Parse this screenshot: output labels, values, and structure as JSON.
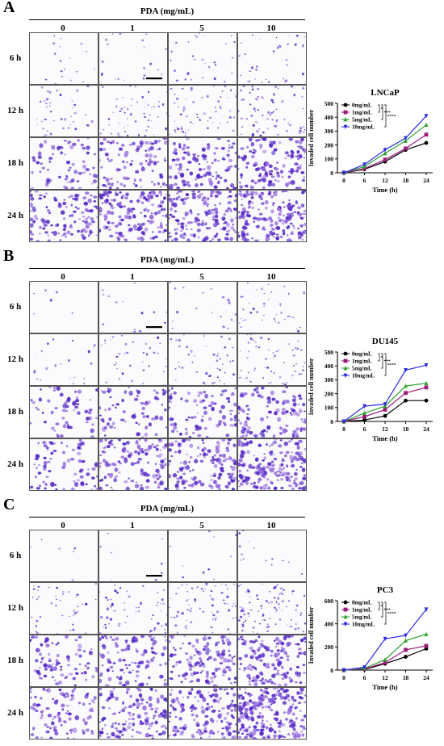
{
  "figure": {
    "pda_header": "PDA (mg/mL)",
    "concentrations": [
      "0",
      "1",
      "5",
      "10"
    ],
    "times": [
      "6 h",
      "12 h",
      "18 h",
      "24 h"
    ],
    "cell_color": "#5b2fc8",
    "panels": [
      {
        "letter": "A",
        "cell_line": "LNCaP"
      },
      {
        "letter": "B",
        "cell_line": "DU145"
      },
      {
        "letter": "C",
        "cell_line": "PC3"
      }
    ]
  },
  "chart_data": [
    {
      "type": "line",
      "title": "LNCaP",
      "xlabel": "Time (h)",
      "ylabel": "Invaded cell number",
      "x": [
        0,
        6,
        12,
        18,
        24
      ],
      "ylim": [
        0,
        500
      ],
      "yticks": [
        0,
        100,
        200,
        300,
        400,
        500
      ],
      "series": [
        {
          "name": "0mg/mL",
          "color": "#000000",
          "marker": "circle",
          "values": [
            0,
            25,
            80,
            165,
            215
          ]
        },
        {
          "name": "1mg/mL",
          "color": "#9b1b7a",
          "marker": "square",
          "values": [
            0,
            30,
            95,
            175,
            275
          ]
        },
        {
          "name": "5mg/mL",
          "color": "#2ea02e",
          "marker": "triangle-up",
          "values": [
            0,
            45,
            140,
            230,
            345
          ]
        },
        {
          "name": "10mg/mL",
          "color": "#2a2ae6",
          "marker": "triangle-down",
          "values": [
            0,
            60,
            165,
            250,
            410
          ]
        }
      ],
      "sig_marks": [
        "*",
        "***",
        "****"
      ],
      "legend": "top-left"
    },
    {
      "type": "line",
      "title": "DU145",
      "xlabel": "Time (h)",
      "ylabel": "Invaded cell number",
      "x": [
        0,
        6,
        12,
        18,
        24
      ],
      "ylim": [
        0,
        500
      ],
      "yticks": [
        0,
        100,
        200,
        300,
        400,
        500
      ],
      "series": [
        {
          "name": "0mg/mL",
          "color": "#000000",
          "marker": "circle",
          "values": [
            0,
            10,
            40,
            150,
            150
          ]
        },
        {
          "name": "1mg/mL",
          "color": "#9b1b7a",
          "marker": "square",
          "values": [
            0,
            35,
            85,
            205,
            245
          ]
        },
        {
          "name": "5mg/mL",
          "color": "#2ea02e",
          "marker": "triangle-up",
          "values": [
            0,
            60,
            110,
            255,
            275
          ]
        },
        {
          "name": "10mg/mL",
          "color": "#2a2ae6",
          "marker": "triangle-down",
          "values": [
            0,
            110,
            125,
            370,
            405
          ]
        }
      ],
      "sig_marks": [
        "*",
        "***",
        "****"
      ],
      "legend": "top-left"
    },
    {
      "type": "line",
      "title": "PC3",
      "xlabel": "Time (h)",
      "ylabel": "Invaded cell number",
      "x": [
        0,
        6,
        12,
        18,
        24
      ],
      "ylim": [
        0,
        600
      ],
      "yticks": [
        0,
        200,
        400,
        600
      ],
      "series": [
        {
          "name": "0mg/mL",
          "color": "#000000",
          "marker": "circle",
          "values": [
            0,
            5,
            55,
            115,
            185
          ]
        },
        {
          "name": "1mg/mL",
          "color": "#9b1b7a",
          "marker": "square",
          "values": [
            0,
            10,
            65,
            175,
            210
          ]
        },
        {
          "name": "5mg/mL",
          "color": "#2ea02e",
          "marker": "triangle-up",
          "values": [
            0,
            15,
            90,
            255,
            310
          ]
        },
        {
          "name": "10mg/mL",
          "color": "#2a2ae6",
          "marker": "triangle-down",
          "values": [
            0,
            25,
            270,
            300,
            525
          ]
        }
      ],
      "sig_marks": [
        "*",
        "***",
        "****"
      ],
      "legend": "top-left"
    }
  ]
}
